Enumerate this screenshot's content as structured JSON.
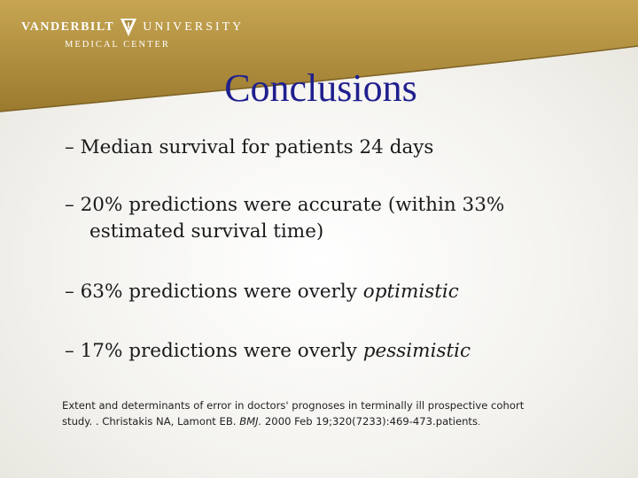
{
  "header": {
    "logo_word_left": "VANDERBILT",
    "logo_word_right": "UNIVERSITY",
    "logo_subline": "MEDICAL CENTER",
    "band_color": "#b08f3c"
  },
  "slide": {
    "title": "Conclusions",
    "title_color": "#1f1f8f",
    "bullets": [
      {
        "text": "– Median survival for patients 24 days"
      },
      {
        "line1": "– 20% predictions were accurate (within 33%",
        "line2": "estimated survival time)"
      },
      {
        "prefix": "– 63% predictions were overly ",
        "emph": "optimistic"
      },
      {
        "prefix": "– 17% predictions were overly ",
        "emph": "pessimistic"
      }
    ],
    "citation": {
      "line1": "Extent and determinants of error in doctors' prognoses in terminally ill prospective cohort",
      "line2_a": "study. . Christakis NA, Lamont EB. ",
      "line2_journal": "BMJ.",
      "line2_b": " 2000 Feb 19;320(7233):469-473.patients",
      "line2_end": "."
    }
  }
}
